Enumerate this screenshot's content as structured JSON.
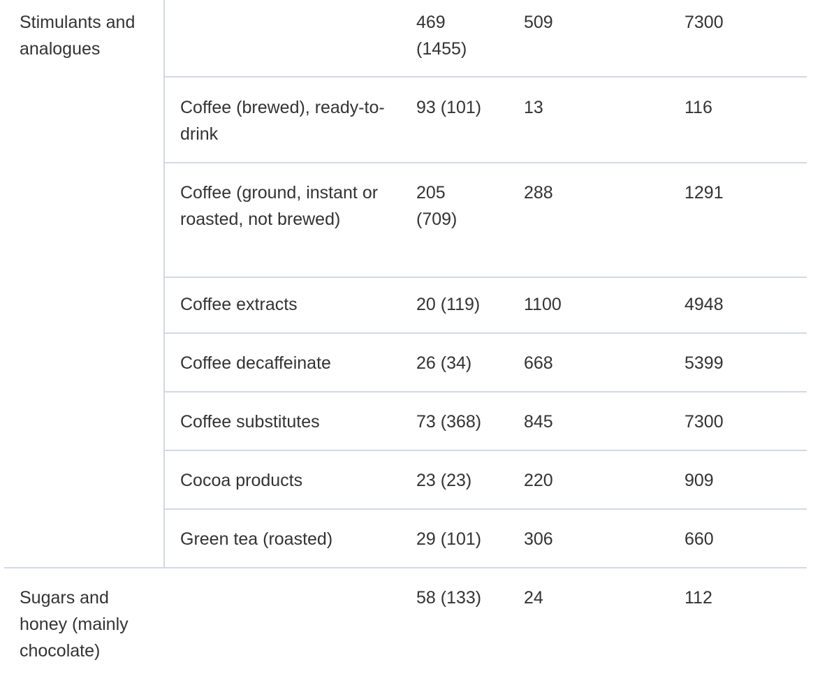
{
  "groups": [
    {
      "category": "Stimulants and analogues",
      "summary": {
        "col3": "469 (1455)",
        "col4": "509",
        "col5": "7300"
      },
      "rows": [
        {
          "name": "Coffee (brewed), ready-to-drink",
          "col3": "93 (101)",
          "col4": "13",
          "col5": "116"
        },
        {
          "name": "Coffee (ground, instant or roasted, not brewed)",
          "col3": "205 (709)",
          "col4": "288",
          "col5": "1291"
        },
        {
          "name": "Coffee extracts",
          "col3": "20 (119)",
          "col4": "1100",
          "col5": "4948"
        },
        {
          "name": "Coffee decaffeinate",
          "col3": "26 (34)",
          "col4": "668",
          "col5": "5399"
        },
        {
          "name": "Coffee substitutes",
          "col3": "73 (368)",
          "col4": "845",
          "col5": "7300"
        },
        {
          "name": "Cocoa products",
          "col3": "23 (23)",
          "col4": "220",
          "col5": "909"
        },
        {
          "name": "Green tea (roasted)",
          "col3": "29 (101)",
          "col4": "306",
          "col5": "660"
        }
      ]
    },
    {
      "category": "Sugars and honey (mainly chocolate)",
      "summary": {
        "col3": "58 (133)",
        "col4": "24",
        "col5": "112"
      }
    }
  ]
}
